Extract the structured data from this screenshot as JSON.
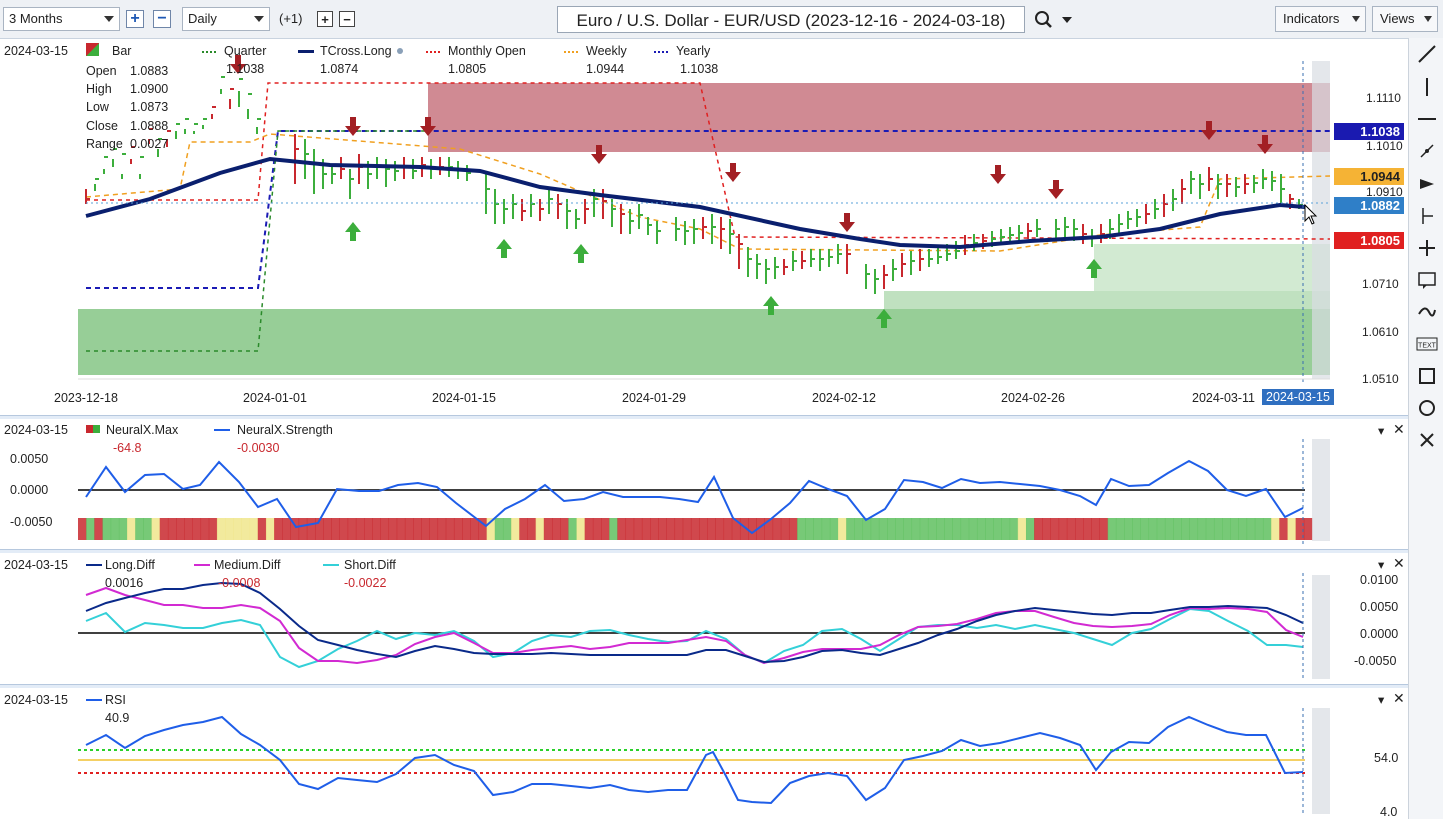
{
  "toolbar": {
    "period": "3 Months",
    "interval": "Daily",
    "plus_one": "(+1)",
    "title": "Euro / U.S. Dollar - EUR/USD (2023-12-16 - 2024-03-18)",
    "indicators_label": "Indicators",
    "views_label": "Views"
  },
  "main_chart": {
    "date": "2024-03-15",
    "legend": {
      "bar": "Bar",
      "quarter": "Quarter",
      "quarter_val": "1.1038",
      "tcross": "TCross.Long",
      "tcross_val": "1.0874",
      "monthly": "Monthly Open",
      "monthly_val": "1.0805",
      "weekly": "Weekly",
      "weekly_val": "1.0944",
      "yearly": "Yearly",
      "yearly_val": "1.1038"
    },
    "ohlc": {
      "open_label": "Open",
      "open": "1.0883",
      "high_label": "High",
      "high": "1.0900",
      "low_label": "Low",
      "low": "1.0873",
      "close_label": "Close",
      "close": "1.0888",
      "range_label": "Range",
      "range": "0.0027"
    },
    "price_axis": [
      "1.1110",
      "1.1010",
      "1.0910",
      "1.0710",
      "1.0610",
      "1.0510"
    ],
    "price_tags": {
      "yearly": "1.1038",
      "weekly": "1.0944",
      "last": "1.0882",
      "monthly": "1.0805"
    },
    "date_axis": [
      "2023-12-18",
      "2024-01-01",
      "2024-01-15",
      "2024-01-29",
      "2024-02-12",
      "2024-02-26",
      "2024-03-11"
    ],
    "cursor_date": "2024-03-15"
  },
  "neuralx": {
    "date": "2024-03-15",
    "max_label": "NeuralX.Max",
    "max_val": "-64.8",
    "strength_label": "NeuralX.Strength",
    "strength_val": "-0.0030",
    "axis": [
      "0.0050",
      "0.0000",
      "-0.0050"
    ]
  },
  "diff": {
    "date": "2024-03-15",
    "long_label": "Long.Diff",
    "long_val": "0.0016",
    "medium_label": "Medium.Diff",
    "medium_val": "-0.0008",
    "short_label": "Short.Diff",
    "short_val": "-0.0022",
    "axis": [
      "0.0100",
      "0.0050",
      "0.0000",
      "-0.0050"
    ]
  },
  "rsi": {
    "date": "2024-03-15",
    "label": "RSI",
    "val": "40.9",
    "axis": [
      "54.0",
      "4.0"
    ]
  },
  "colors": {
    "tcross": "#0a1f6e",
    "yearly": "#1b1bb5",
    "monthly": "#e02020",
    "weekly": "#f0a020",
    "quarter": "#2a8a2a",
    "up_bar": "#3cae3c",
    "down_bar": "#c8282e",
    "resist_zone": "#c9707a",
    "support_zone": "#8fcf8f"
  }
}
